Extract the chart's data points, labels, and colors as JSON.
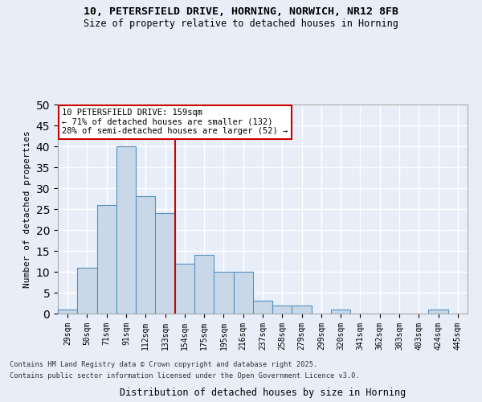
{
  "title1": "10, PETERSFIELD DRIVE, HORNING, NORWICH, NR12 8FB",
  "title2": "Size of property relative to detached houses in Horning",
  "xlabel": "Distribution of detached houses by size in Horning",
  "ylabel": "Number of detached properties",
  "categories": [
    "29sqm",
    "50sqm",
    "71sqm",
    "91sqm",
    "112sqm",
    "133sqm",
    "154sqm",
    "175sqm",
    "195sqm",
    "216sqm",
    "237sqm",
    "258sqm",
    "279sqm",
    "299sqm",
    "320sqm",
    "341sqm",
    "362sqm",
    "383sqm",
    "403sqm",
    "424sqm",
    "445sqm"
  ],
  "values": [
    1,
    11,
    26,
    40,
    28,
    24,
    12,
    14,
    10,
    10,
    3,
    2,
    2,
    0,
    1,
    0,
    0,
    0,
    0,
    1,
    0
  ],
  "bar_color": "#c8d8e8",
  "bar_edge_color": "#5590c0",
  "annotation_line1": "10 PETERSFIELD DRIVE: 159sqm",
  "annotation_line2": "← 71% of detached houses are smaller (132)",
  "annotation_line3": "28% of semi-detached houses are larger (52) →",
  "vline_position": 5.5,
  "vline_color": "#cc0000",
  "annotation_box_color": "#cc0000",
  "ylim": [
    0,
    50
  ],
  "yticks": [
    0,
    5,
    10,
    15,
    20,
    25,
    30,
    35,
    40,
    45,
    50
  ],
  "background_color": "#e8eef8",
  "grid_color": "#ffffff",
  "footer1": "Contains HM Land Registry data © Crown copyright and database right 2025.",
  "footer2": "Contains public sector information licensed under the Open Government Licence v3.0."
}
